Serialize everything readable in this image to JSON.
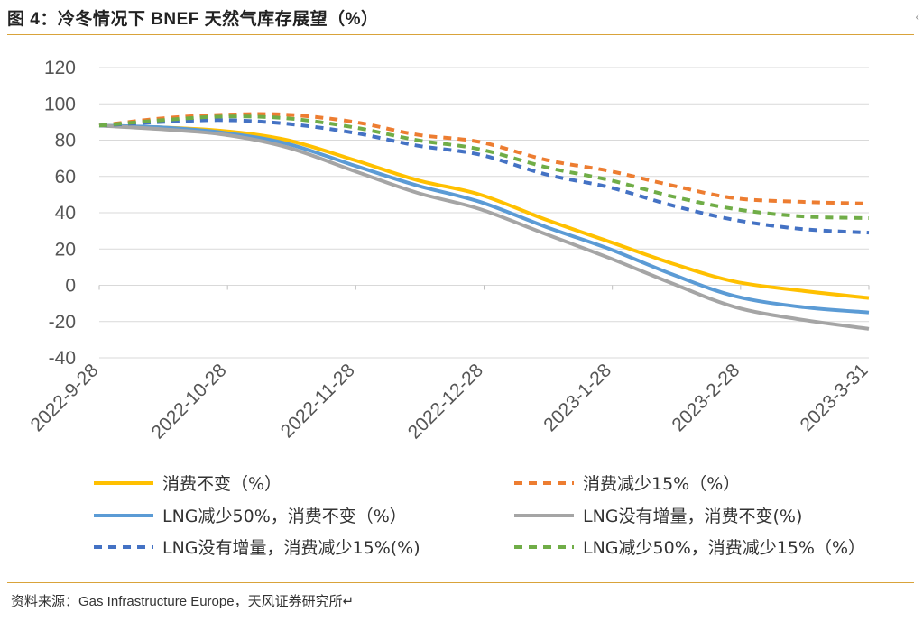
{
  "header": {
    "title": "图 4：冷冬情况下 BNEF 天然气库存展望（%）",
    "corner_mark": "‹"
  },
  "footer": {
    "source": "资料来源：Gas Infrastructure Europe，天风证券研究所↵"
  },
  "chart_data": {
    "type": "line",
    "title": "冷冬情况下 BNEF 天然气库存展望（%）",
    "xlabel": "",
    "ylabel": "",
    "ylim": [
      -40,
      120
    ],
    "yticks": [
      -40,
      -20,
      0,
      20,
      40,
      60,
      80,
      100,
      120
    ],
    "grid": true,
    "legend_position": "bottom",
    "x_tick_labels": [
      "2022-9-28",
      "2022-10-28",
      "2022-11-28",
      "2022-12-28",
      "2023-1-28",
      "2023-2-28",
      "2023-3-31"
    ],
    "x": [
      0,
      15,
      30,
      45,
      61,
      76,
      91,
      107,
      122,
      137,
      152,
      168,
      184
    ],
    "series": [
      {
        "name": "消费不变（%）",
        "color": "#FFC000",
        "dash": "solid",
        "values": [
          88,
          87,
          85,
          80,
          69,
          58,
          50,
          36,
          24,
          12,
          2,
          -3,
          -7
        ]
      },
      {
        "name": "消费减少15%（%）",
        "color": "#ED7D31",
        "dash": "dashed",
        "values": [
          88,
          92,
          94,
          94,
          90,
          83,
          79,
          69,
          63,
          55,
          48,
          46,
          45
        ]
      },
      {
        "name": "LNG减少50%，消费不变（%）",
        "color": "#5B9BD5",
        "dash": "solid",
        "values": [
          88,
          87,
          84,
          78,
          66,
          55,
          46,
          32,
          20,
          6,
          -6,
          -12,
          -15
        ]
      },
      {
        "name": "LNG没有增量，消费不变(%)",
        "color": "#A5A5A5",
        "dash": "solid",
        "values": [
          88,
          86,
          83,
          76,
          63,
          51,
          42,
          28,
          15,
          1,
          -12,
          -19,
          -24
        ]
      },
      {
        "name": "LNG没有增量，消费减少15%(%)",
        "color": "#4472C4",
        "dash": "dashed",
        "values": [
          88,
          90,
          91,
          89,
          84,
          77,
          72,
          61,
          54,
          44,
          36,
          31,
          29
        ]
      },
      {
        "name": "LNG减少50%，消费减少15%（%）",
        "color": "#70AD47",
        "dash": "dashed",
        "values": [
          88,
          91,
          93,
          92,
          87,
          80,
          75,
          65,
          58,
          49,
          42,
          38,
          37
        ]
      }
    ]
  }
}
